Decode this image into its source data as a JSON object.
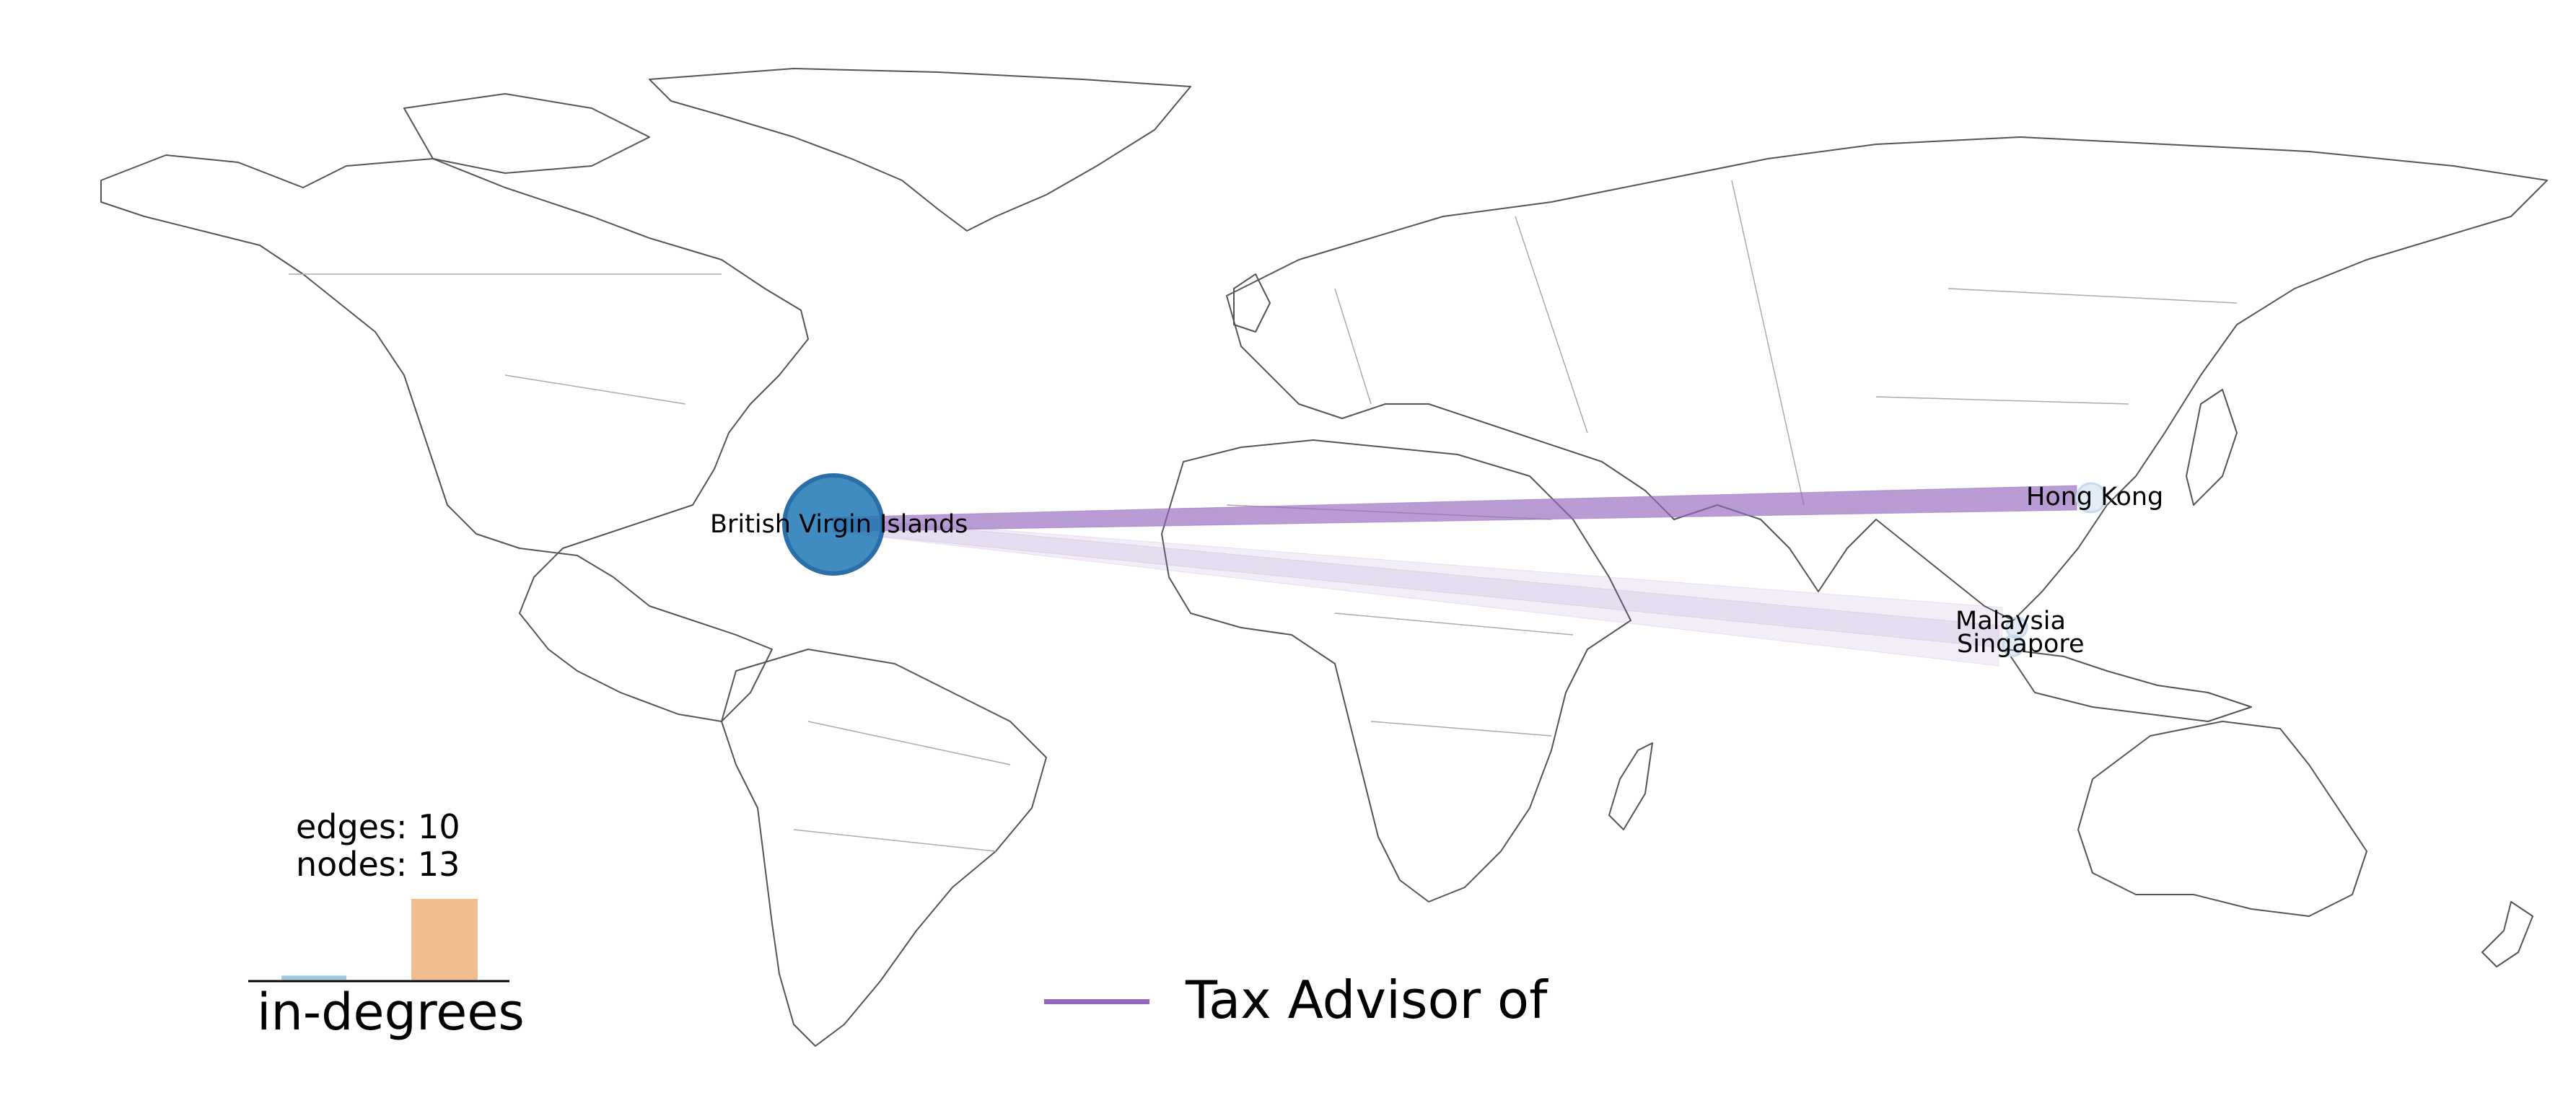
{
  "map": {
    "nodes": [
      {
        "name": "British Virgin Islands",
        "role": "hub",
        "color": "#1f77b4"
      },
      {
        "name": "Hong Kong",
        "role": "leaf",
        "color": "#aec7e8"
      },
      {
        "name": "Malaysia",
        "role": "leaf",
        "color": "#aec7e8"
      },
      {
        "name": "Singapore",
        "role": "leaf",
        "color": "#aec7e8"
      }
    ],
    "edges": [
      {
        "from": "British Virgin Islands",
        "to": "Hong Kong",
        "emphasis": "strong"
      },
      {
        "from": "British Virgin Islands",
        "to": "Malaysia",
        "emphasis": "faint"
      },
      {
        "from": "British Virgin Islands",
        "to": "Singapore",
        "emphasis": "faint"
      }
    ],
    "edge_color": "#9467bd"
  },
  "stats": {
    "edges": "edges: 10",
    "nodes": "nodes: 13"
  },
  "histogram": {
    "title": "in-degrees",
    "bars": [
      {
        "value": 0.05,
        "color": "#9ecae1"
      },
      {
        "value": 1.0,
        "color": "#f0be90"
      }
    ]
  },
  "legend": {
    "label": "Tax Advisor of",
    "color": "#9467bd"
  }
}
